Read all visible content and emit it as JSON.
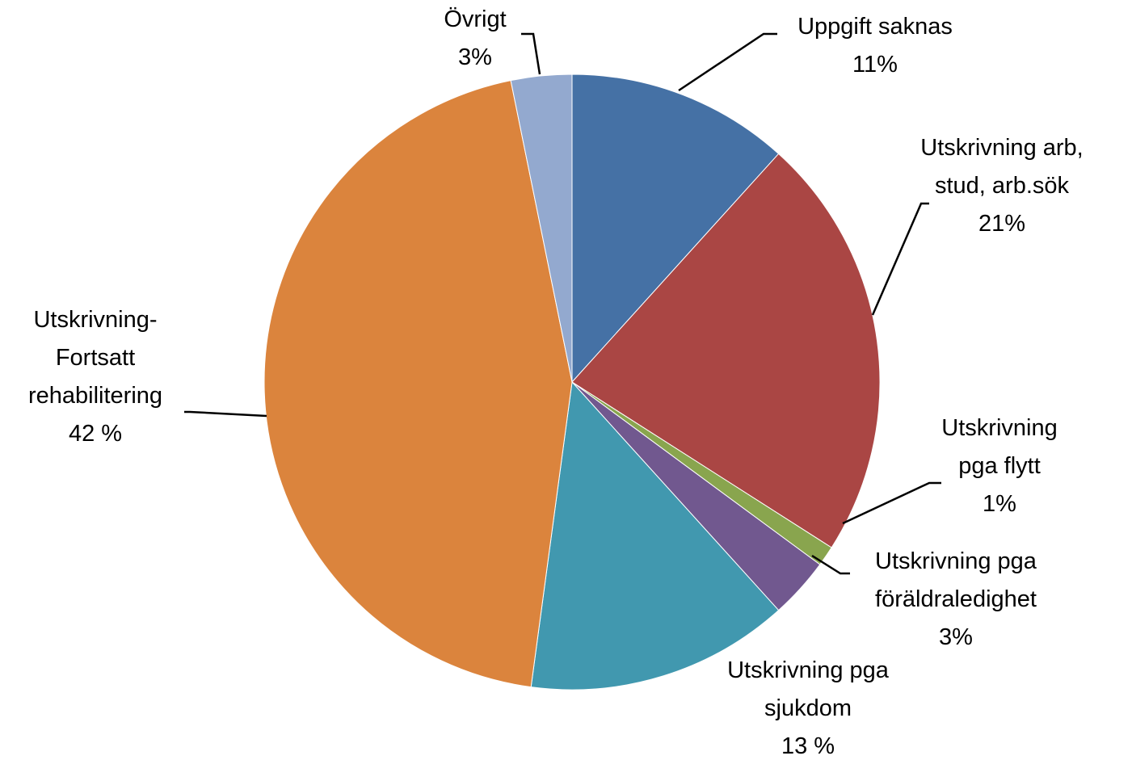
{
  "chart_data": {
    "type": "pie",
    "categories": [
      "Uppgift saknas",
      "Utskrivning arb,\nstud, arb.sök",
      "Utskrivning\npga flytt",
      "Utskrivning pga\nföräldraledighet",
      "Utskrivning pga\nsjukdom",
      "Utskrivning-\nFortsatt\nrehabilitering",
      "Övrigt"
    ],
    "values": [
      11,
      21,
      1,
      3,
      13,
      42,
      3
    ],
    "value_labels": [
      "11%",
      "21%",
      "1%",
      "3%",
      "13 %",
      "42 %",
      "3%"
    ],
    "colors": [
      "#4571a5",
      "#aa4644",
      "#89a54e",
      "#71588f",
      "#4198af",
      "#db843d",
      "#93a9cf"
    ]
  }
}
